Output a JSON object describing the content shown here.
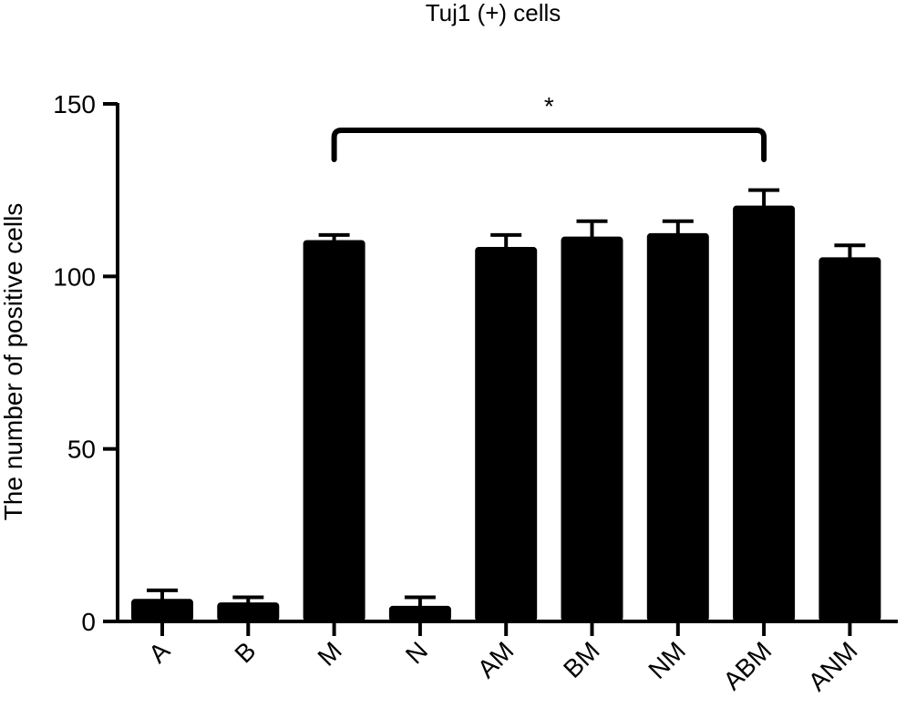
{
  "chart_data": {
    "type": "bar",
    "title": "Tuj1 (+) cells",
    "xlabel": "",
    "ylabel": "The number of positive cells",
    "ylim": [
      0,
      150
    ],
    "yticks": [
      0,
      50,
      100,
      150
    ],
    "categories": [
      "A",
      "B",
      "M",
      "N",
      "AM",
      "BM",
      "NM",
      "ABM",
      "ANM"
    ],
    "values": [
      6,
      5,
      110,
      4,
      108,
      111,
      112,
      120,
      105
    ],
    "errors": [
      3,
      2,
      2,
      3,
      4,
      5,
      4,
      5,
      4
    ],
    "bar_color": "#000000",
    "grid": false,
    "significance": [
      {
        "from": "M",
        "to": "ABM",
        "label": "*"
      }
    ]
  }
}
